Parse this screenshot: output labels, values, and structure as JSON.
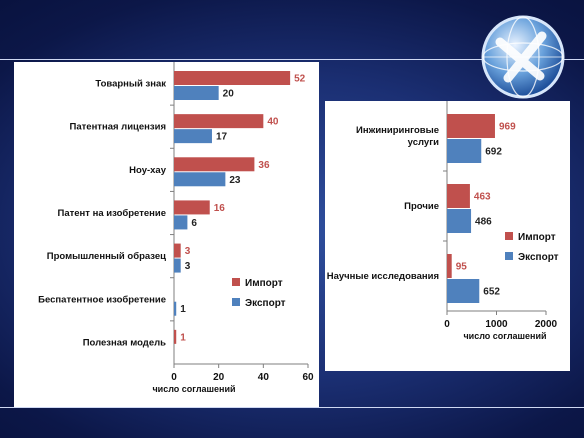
{
  "colors": {
    "import": "#c0504d",
    "export": "#4f81bd"
  },
  "logo_icon": "globe-logo-icon",
  "chart_data": [
    {
      "type": "bar",
      "orientation": "horizontal",
      "categories": [
        "Товарный знак",
        "Патентная лицензия",
        "Ноу-хау",
        "Патент на изобретение",
        "Промышленный образец",
        "Беспатентное изобретение",
        "Полезная модель"
      ],
      "series": [
        {
          "name": "Импорт",
          "values": [
            52,
            40,
            36,
            16,
            3,
            null,
            1
          ]
        },
        {
          "name": "Экспорт",
          "values": [
            20,
            17,
            23,
            6,
            3,
            1,
            null
          ]
        }
      ],
      "xlabel": "число соглашений",
      "xlim": [
        0,
        60
      ],
      "xticks": [
        "0",
        "20",
        "40",
        "60"
      ],
      "grid": false,
      "legend": "right"
    },
    {
      "type": "bar",
      "orientation": "horizontal",
      "categories": [
        "Инжиниринговые услуги",
        "Прочие",
        "Научные исследования"
      ],
      "series": [
        {
          "name": "Импорт",
          "values": [
            969,
            463,
            95
          ]
        },
        {
          "name": "Экспорт",
          "values": [
            692,
            486,
            652
          ]
        }
      ],
      "xlabel": "число соглашений",
      "xlim": [
        0,
        2000
      ],
      "xticks": [
        "0",
        "1000",
        "2000"
      ],
      "grid": false,
      "legend": "right"
    }
  ]
}
